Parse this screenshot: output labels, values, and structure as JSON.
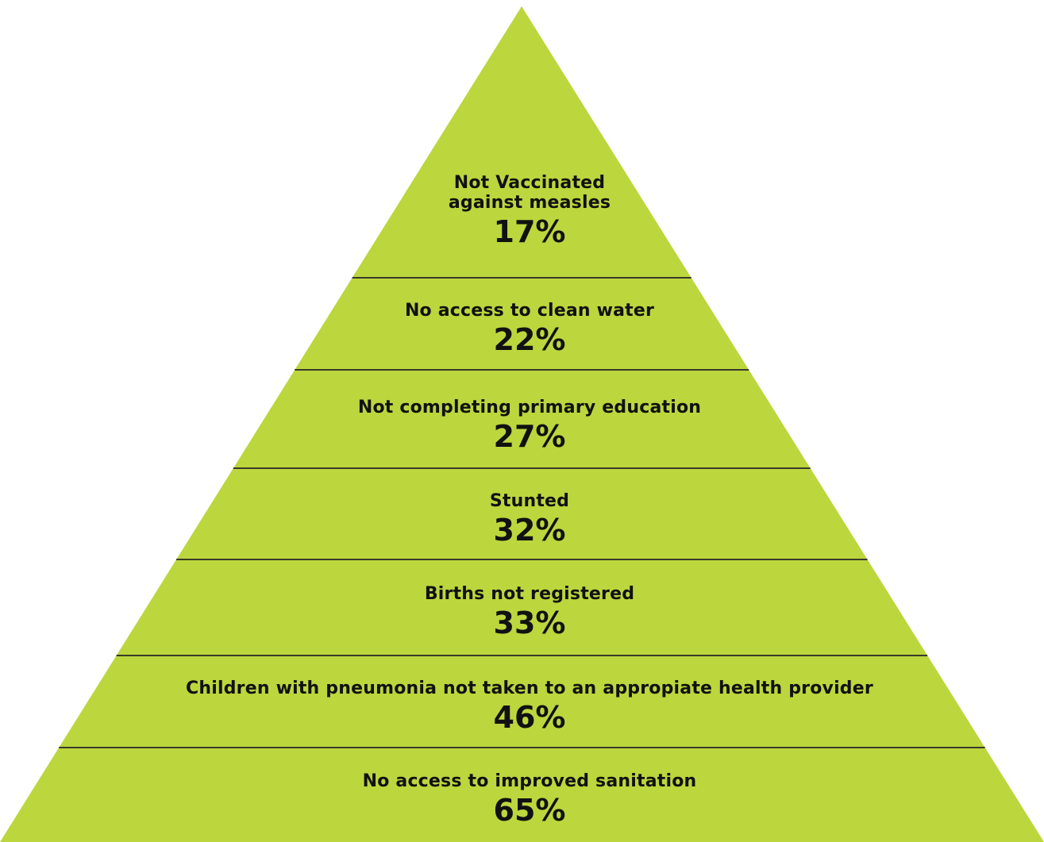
{
  "colors": {
    "fill": "#bcd63d",
    "divider": "#3a3a2a",
    "text": "#111111"
  },
  "tiers": [
    {
      "label_lines": [
        "Not Vaccinated",
        "against measles"
      ],
      "value": "17%"
    },
    {
      "label_lines": [
        "No access to clean water"
      ],
      "value": "22%"
    },
    {
      "label_lines": [
        "Not completing primary education"
      ],
      "value": "27%"
    },
    {
      "label_lines": [
        "Stunted"
      ],
      "value": "32%"
    },
    {
      "label_lines": [
        "Births not registered"
      ],
      "value": "33%"
    },
    {
      "label_lines": [
        "Children with pneumonia not taken to an appropiate health provider"
      ],
      "value": "46%"
    },
    {
      "label_lines": [
        "No access to improved sanitation"
      ],
      "value": "65%"
    }
  ]
}
